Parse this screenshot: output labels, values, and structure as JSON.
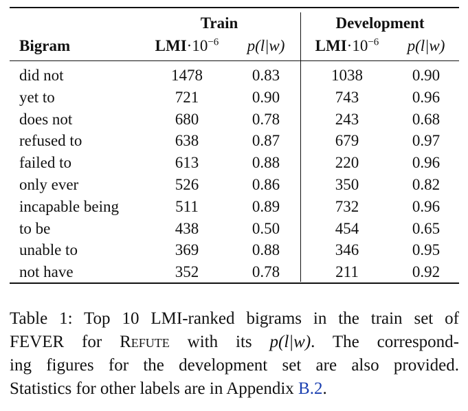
{
  "table": {
    "group_headers": {
      "train": "Train",
      "development": "Development"
    },
    "columns": {
      "bigram": "Bigram",
      "lmi": "LMI",
      "lmi_dot": "·10",
      "lmi_exp": "−6",
      "prob": "p(l|w)"
    },
    "rows": [
      {
        "bigram": "did not",
        "train_lmi": "1478",
        "train_p": "0.83",
        "dev_lmi": "1038",
        "dev_p": "0.90"
      },
      {
        "bigram": "yet to",
        "train_lmi": "721",
        "train_p": "0.90",
        "dev_lmi": "743",
        "dev_p": "0.96"
      },
      {
        "bigram": "does not",
        "train_lmi": "680",
        "train_p": "0.78",
        "dev_lmi": "243",
        "dev_p": "0.68"
      },
      {
        "bigram": "refused to",
        "train_lmi": "638",
        "train_p": "0.87",
        "dev_lmi": "679",
        "dev_p": "0.97"
      },
      {
        "bigram": "failed to",
        "train_lmi": "613",
        "train_p": "0.88",
        "dev_lmi": "220",
        "dev_p": "0.96"
      },
      {
        "bigram": "only ever",
        "train_lmi": "526",
        "train_p": "0.86",
        "dev_lmi": "350",
        "dev_p": "0.82"
      },
      {
        "bigram": "incapable being",
        "train_lmi": "511",
        "train_p": "0.89",
        "dev_lmi": "732",
        "dev_p": "0.96"
      },
      {
        "bigram": "to be",
        "train_lmi": "438",
        "train_p": "0.50",
        "dev_lmi": "454",
        "dev_p": "0.65"
      },
      {
        "bigram": "unable to",
        "train_lmi": "369",
        "train_p": "0.88",
        "dev_lmi": "346",
        "dev_p": "0.95"
      },
      {
        "bigram": "not have",
        "train_lmi": "352",
        "train_p": "0.78",
        "dev_lmi": "211",
        "dev_p": "0.92"
      }
    ]
  },
  "caption": {
    "line1": "Table 1: Top 10 LMI-ranked bigrams in the train set of",
    "line2_a": "FEVER for ",
    "line2_refute": "Refute",
    "line2_b": " with its ",
    "line2_prob": "p(l|w)",
    "line2_c": ". The correspond-",
    "line3": "ing figures for the development set are also provided.",
    "line4_a": "Statistics for other labels are in Appendix ",
    "line4_ref": "B.2",
    "line4_b": "."
  },
  "colors": {
    "text": "#111111",
    "link": "#1a3fb0"
  }
}
